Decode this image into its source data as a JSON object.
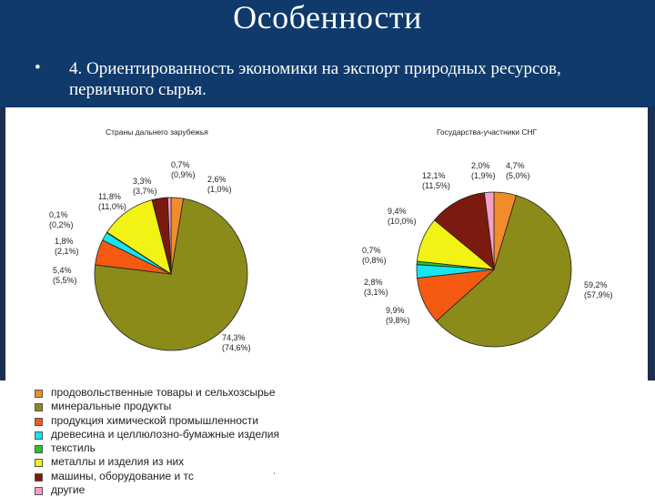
{
  "slide": {
    "title": "Особенности",
    "bullet_symbol": "•",
    "bullet_text": "4. Ориентированность экономики на экспорт природных ресурсов, первичного сырья."
  },
  "colors": {
    "header_bg": "#0f3a6b",
    "categories": [
      "#f08c2a",
      "#8b8b1a",
      "#f45a12",
      "#18e4f0",
      "#f2f215",
      "#7b1a0e",
      "#f5a0c8"
    ]
  },
  "legend": {
    "items": [
      "продовольственные товары и сельхозсырье",
      "минеральные продукты",
      "продукция химической промышленности",
      "древесина и целлюлозно-бумажные изделия",
      "текстиль",
      "металлы и изделия из них",
      "машины, оборудование и тс",
      "другие"
    ]
  },
  "chart_data": [
    {
      "type": "pie",
      "title": "Страны дальнего зарубежья",
      "categories": [
        "продовольственные товары и сельхозсырье",
        "минеральные продукты",
        "продукция химической промышленности",
        "древесина и целлюлозно-бумажные изделия",
        "текстиль",
        "металлы и изделия из них",
        "машины, оборудование и тс",
        "другие"
      ],
      "values": [
        2.6,
        74.3,
        5.4,
        1.8,
        0.1,
        11.8,
        3.3,
        0.7
      ],
      "values_secondary": [
        1.0,
        74.6,
        5.5,
        2.1,
        0.2,
        11.0,
        3.7,
        0.9
      ],
      "labels": [
        [
          "2,6%",
          "(1,0%)"
        ],
        [
          "74,3%",
          "(74,6%)"
        ],
        [
          "5,4%",
          "(5,5%)"
        ],
        [
          "1,8%",
          "(2,1%)"
        ],
        [
          "0,1%",
          "(0,2%)"
        ],
        [
          "11,8%",
          "(11,0%)"
        ],
        [
          "3,3%",
          "(3,7%)"
        ],
        [
          "0,7%",
          "(0,9%)"
        ]
      ]
    },
    {
      "type": "pie",
      "title": "Государства-участники СНГ",
      "categories": [
        "продовольственные товары и сельхозсырье",
        "минеральные продукты",
        "продукция химической промышленности",
        "древесина и целлюлозно-бумажные изделия",
        "текстиль",
        "металлы и изделия из них",
        "машины, оборудование и тс",
        "другие"
      ],
      "values": [
        4.7,
        59.2,
        9.9,
        2.8,
        0.7,
        9.4,
        12.1,
        2.0
      ],
      "values_secondary": [
        5.0,
        57.9,
        9.8,
        3.1,
        0.8,
        10.0,
        11.5,
        1.9
      ],
      "labels": [
        [
          "4,7%",
          "(5,0%)"
        ],
        [
          "59,2%",
          "(57,9%)"
        ],
        [
          "9,9%",
          "(9,8%)"
        ],
        [
          "2,8%",
          "(3,1%)"
        ],
        [
          "0,7%",
          "(0,8%)"
        ],
        [
          "9,4%",
          "(10,0%)"
        ],
        [
          "12,1%",
          "(11,5%)"
        ],
        [
          "2,0%",
          "(1,9%)"
        ]
      ]
    }
  ]
}
